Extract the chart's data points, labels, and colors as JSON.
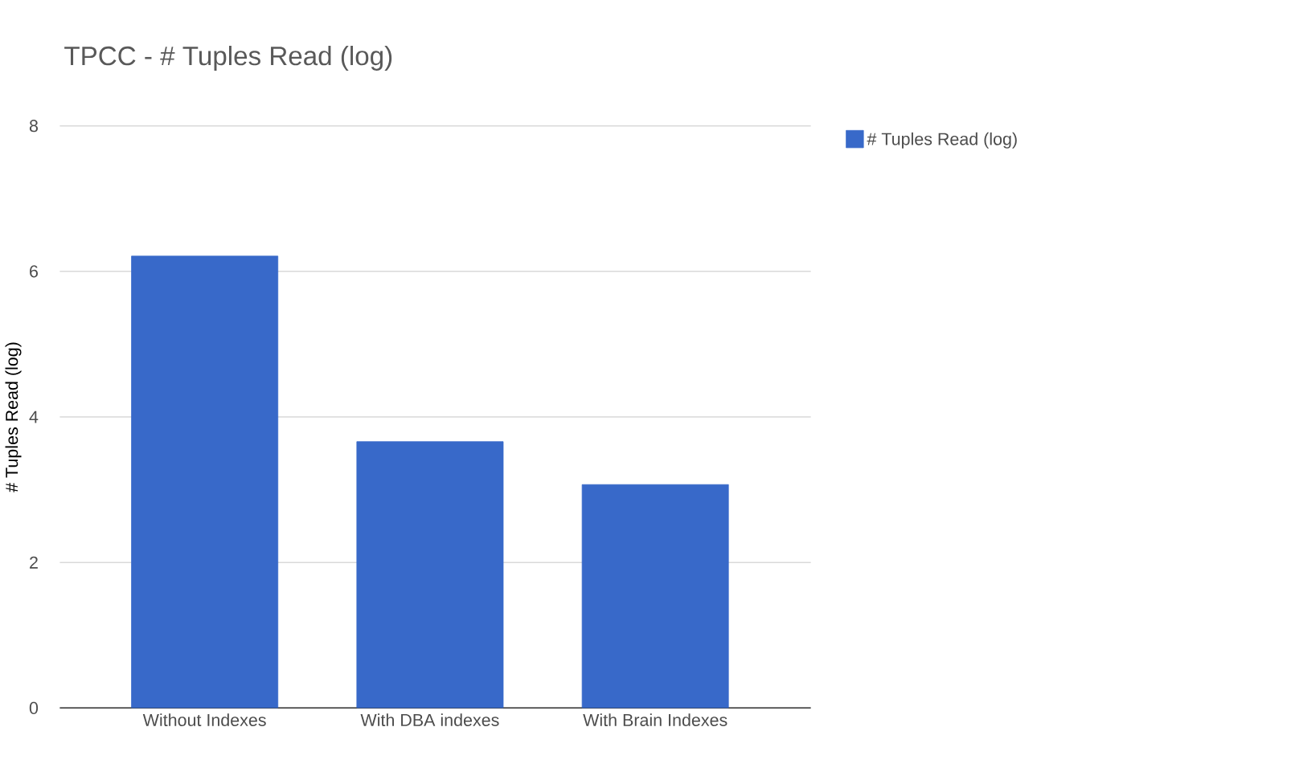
{
  "chart_data": {
    "type": "bar",
    "title": "TPCC - # Tuples Read (log)",
    "ylabel": "# Tuples Read (log)",
    "categories": [
      "Without Indexes",
      "With DBA indexes",
      "With Brain Indexes"
    ],
    "series": [
      {
        "name": "# Tuples Read (log)",
        "color": "#3869c9",
        "values": [
          6.21,
          3.66,
          3.07
        ]
      }
    ],
    "ylim": [
      0,
      8
    ],
    "yticks": [
      0,
      2,
      4,
      6,
      8
    ],
    "grid": "y",
    "legend": "top right"
  }
}
